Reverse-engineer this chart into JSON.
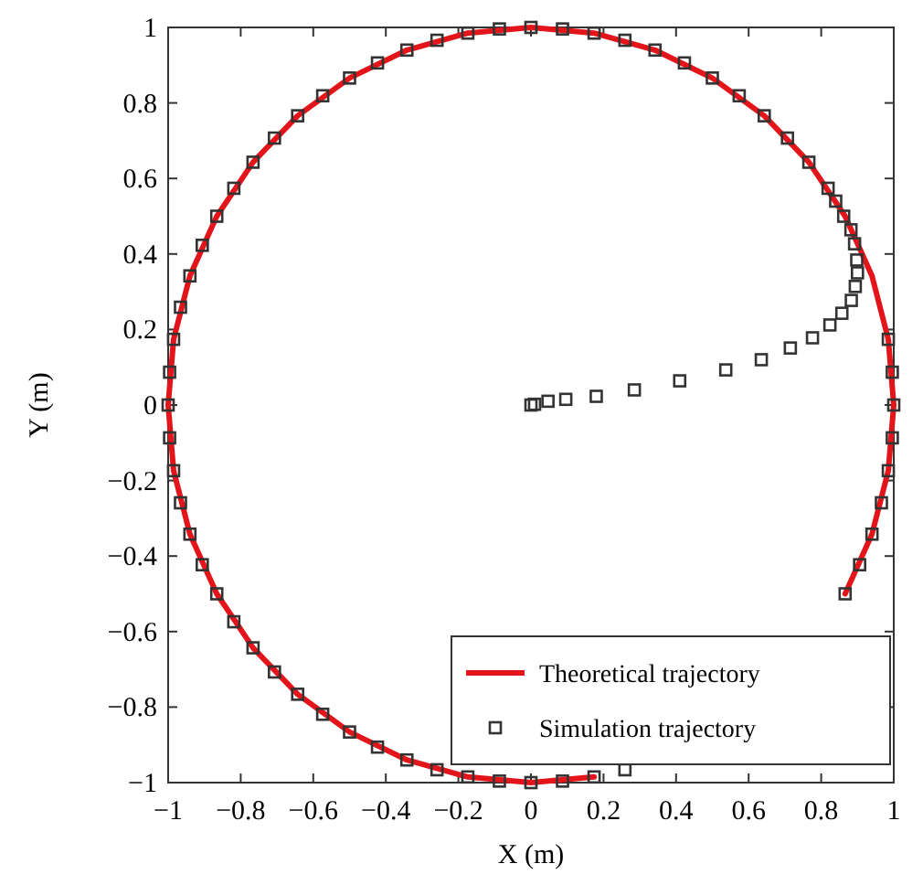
{
  "chart_data": {
    "type": "line",
    "xlabel": "X (m)",
    "ylabel": "Y (m)",
    "xlim": [
      -1,
      1
    ],
    "ylim": [
      -1,
      1
    ],
    "xticks": [
      {
        "value": -1,
        "label": "−1"
      },
      {
        "value": -0.8,
        "label": "−0.8"
      },
      {
        "value": -0.6,
        "label": "−0.6"
      },
      {
        "value": -0.4,
        "label": "−0.4"
      },
      {
        "value": -0.2,
        "label": "−0.2"
      },
      0,
      0.2,
      0.4,
      0.6,
      0.8,
      1
    ],
    "yticks": [
      {
        "value": -1,
        "label": "−1"
      },
      {
        "value": -0.8,
        "label": "−0.8"
      },
      {
        "value": -0.6,
        "label": "−0.6"
      },
      {
        "value": -0.4,
        "label": "−0.4"
      },
      {
        "value": -0.2,
        "label": "−0.2"
      },
      0,
      0.2,
      0.4,
      0.6,
      0.8,
      1
    ],
    "grid": false,
    "legend": "bottom right",
    "series": [
      {
        "name": "Theoretical trajectory",
        "color": "#e3151b",
        "line_style": "solid",
        "marker": "none",
        "x": [
          1,
          0.985,
          0.94,
          0.866,
          0.766,
          0.643,
          0.5,
          0.342,
          0.174,
          0,
          -0.174,
          -0.342,
          -0.5,
          -0.643,
          -0.766,
          -0.866,
          -0.94,
          -0.985,
          -1,
          -0.985,
          -0.94,
          -0.866,
          -0.766,
          -0.643,
          -0.5,
          -0.342,
          -0.174,
          0,
          0.174,
          0.342,
          0.5,
          0.643,
          0.766,
          0.866,
          0.94,
          0.985,
          1
        ],
        "values": [
          0,
          0.174,
          0.342,
          0.5,
          0.643,
          0.766,
          0.866,
          0.94,
          0.985,
          1,
          0.985,
          0.94,
          0.866,
          0.766,
          0.643,
          0.5,
          0.342,
          0.174,
          0,
          -0.174,
          -0.342,
          -0.5,
          -0.643,
          -0.766,
          -0.866,
          -0.94,
          -0.985,
          -1,
          -0.985,
          null,
          null,
          null,
          null,
          -0.5,
          -0.342,
          -0.174,
          0
        ]
      },
      {
        "name": "Simulation trajectory",
        "type": "scatter",
        "color": "#333333",
        "marker": "square",
        "x": [
          0,
          0.01,
          0.047,
          0.096,
          0.18,
          0.285,
          0.41,
          0.537,
          0.635,
          0.715,
          0.776,
          0.824,
          0.857,
          0.883,
          0.894,
          0.9,
          0.898,
          0.892,
          0.882,
          0.862,
          0.84,
          0.819,
          0.766,
          0.707,
          0.643,
          0.574,
          0.5,
          0.423,
          0.342,
          0.259,
          0.174,
          0.087,
          0,
          -0.087,
          -0.174,
          -0.259,
          -0.342,
          -0.423,
          -0.5,
          -0.574,
          -0.643,
          -0.707,
          -0.766,
          -0.819,
          -0.866,
          -0.906,
          -0.94,
          -0.966,
          -0.985,
          -0.996,
          -1,
          -0.996,
          -0.985,
          -0.966,
          -0.94,
          -0.906,
          -0.866,
          -0.819,
          -0.766,
          -0.707,
          -0.643,
          -0.574,
          -0.5,
          -0.423,
          -0.342,
          -0.259,
          -0.174,
          -0.087,
          0,
          0.087,
          0.174,
          0.259,
          0.342,
          0.423,
          0.5,
          0.574,
          0.643,
          0.707,
          0.766,
          0.819,
          0.866,
          0.906,
          0.94,
          0.966,
          0.985,
          0.996,
          1,
          0.996,
          0.985
        ],
        "values": [
          0,
          0.002,
          0.01,
          0.015,
          0.023,
          0.04,
          0.064,
          0.093,
          0.12,
          0.151,
          0.178,
          0.212,
          0.243,
          0.277,
          0.314,
          0.35,
          0.384,
          0.427,
          0.464,
          0.5,
          0.54,
          0.574,
          0.643,
          0.707,
          0.766,
          0.819,
          0.866,
          0.906,
          0.94,
          0.966,
          0.985,
          0.996,
          1,
          0.996,
          0.985,
          0.966,
          0.94,
          0.906,
          0.866,
          0.819,
          0.766,
          0.707,
          0.643,
          0.574,
          0.5,
          0.423,
          0.342,
          0.259,
          0.174,
          0.087,
          0,
          -0.087,
          -0.174,
          -0.259,
          -0.342,
          -0.423,
          -0.5,
          -0.574,
          -0.643,
          -0.707,
          -0.766,
          -0.819,
          -0.866,
          -0.906,
          -0.94,
          -0.966,
          -0.985,
          -0.996,
          -1,
          -0.996,
          -0.985,
          -0.966,
          null,
          null,
          null,
          null,
          null,
          null,
          null,
          null,
          -0.5,
          -0.423,
          -0.342,
          -0.259,
          -0.174,
          -0.087,
          0,
          0.087,
          0.174
        ]
      }
    ]
  }
}
